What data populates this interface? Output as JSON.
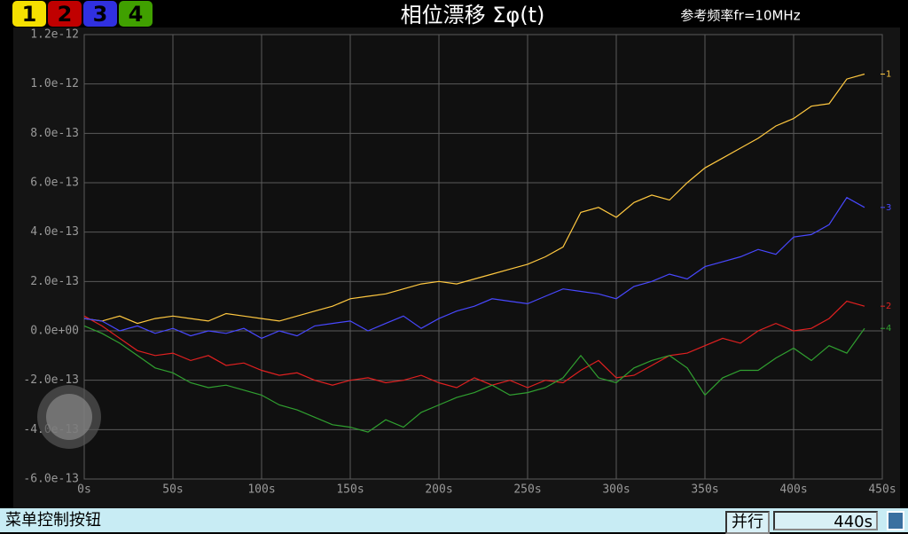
{
  "chart_data": {
    "type": "line",
    "title": "相位漂移 Σφ(t)",
    "subtitle": "参考频率fr=10MHz",
    "x": [
      0,
      10,
      20,
      30,
      40,
      50,
      60,
      70,
      80,
      90,
      100,
      110,
      120,
      130,
      140,
      150,
      160,
      170,
      180,
      190,
      200,
      210,
      220,
      230,
      240,
      250,
      260,
      270,
      280,
      290,
      300,
      310,
      320,
      330,
      340,
      350,
      360,
      370,
      380,
      390,
      400,
      410,
      420,
      430,
      440
    ],
    "series": [
      {
        "name": "1",
        "color": "#ffc840",
        "values": [
          5e-14,
          4e-14,
          6e-14,
          3e-14,
          5e-14,
          6e-14,
          5e-14,
          4e-14,
          7e-14,
          6e-14,
          5e-14,
          4e-14,
          6e-14,
          8e-14,
          1e-13,
          1.3e-13,
          1.4e-13,
          1.5e-13,
          1.7e-13,
          1.9e-13,
          2e-13,
          1.9e-13,
          2.1e-13,
          2.3e-13,
          2.5e-13,
          2.7e-13,
          3e-13,
          3.4e-13,
          4.8e-13,
          5e-13,
          4.6e-13,
          5.2e-13,
          5.5e-13,
          5.3e-13,
          6e-13,
          6.6e-13,
          7e-13,
          7.4e-13,
          7.8e-13,
          8.3e-13,
          8.6e-13,
          9.1e-13,
          9.2e-13,
          1.02e-12,
          1.04e-12
        ]
      },
      {
        "name": "2",
        "color": "#e02020",
        "values": [
          6e-14,
          2e-14,
          -3e-14,
          -8e-14,
          -1e-13,
          -9e-14,
          -1.2e-13,
          -1e-13,
          -1.4e-13,
          -1.3e-13,
          -1.6e-13,
          -1.8e-13,
          -1.7e-13,
          -2e-13,
          -2.2e-13,
          -2e-13,
          -1.9e-13,
          -2.1e-13,
          -2e-13,
          -1.8e-13,
          -2.1e-13,
          -2.3e-13,
          -1.9e-13,
          -2.2e-13,
          -2e-13,
          -2.3e-13,
          -2e-13,
          -2.1e-13,
          -1.6e-13,
          -1.2e-13,
          -1.9e-13,
          -1.8e-13,
          -1.4e-13,
          -1e-13,
          -9e-14,
          -6e-14,
          -3e-14,
          -5e-14,
          0.0,
          3e-14,
          0.0,
          1e-14,
          5e-14,
          1.2e-13,
          1e-13
        ]
      },
      {
        "name": "3",
        "color": "#4848ff",
        "values": [
          5e-14,
          4e-14,
          0.0,
          2e-14,
          -1e-14,
          1e-14,
          -2e-14,
          0.0,
          -1e-14,
          1e-14,
          -3e-14,
          0.0,
          -2e-14,
          2e-14,
          3e-14,
          4e-14,
          0.0,
          3e-14,
          6e-14,
          1e-14,
          5e-14,
          8e-14,
          1e-13,
          1.3e-13,
          1.2e-13,
          1.1e-13,
          1.4e-13,
          1.7e-13,
          1.6e-13,
          1.5e-13,
          1.3e-13,
          1.8e-13,
          2e-13,
          2.3e-13,
          2.1e-13,
          2.6e-13,
          2.8e-13,
          3e-13,
          3.3e-13,
          3.1e-13,
          3.8e-13,
          3.9e-13,
          4.3e-13,
          5.4e-13,
          5e-13
        ]
      },
      {
        "name": "4",
        "color": "#30a030",
        "values": [
          2e-14,
          -1e-14,
          -5e-14,
          -1e-13,
          -1.5e-13,
          -1.7e-13,
          -2.1e-13,
          -2.3e-13,
          -2.2e-13,
          -2.4e-13,
          -2.6e-13,
          -3e-13,
          -3.2e-13,
          -3.5e-13,
          -3.8e-13,
          -3.9e-13,
          -4.1e-13,
          -3.6e-13,
          -3.9e-13,
          -3.3e-13,
          -3e-13,
          -2.7e-13,
          -2.5e-13,
          -2.2e-13,
          -2.6e-13,
          -2.5e-13,
          -2.3e-13,
          -1.9e-13,
          -1e-13,
          -1.9e-13,
          -2.1e-13,
          -1.5e-13,
          -1.2e-13,
          -1e-13,
          -1.5e-13,
          -2.6e-13,
          -1.9e-13,
          -1.6e-13,
          -1.6e-13,
          -1.1e-13,
          -7e-14,
          -1.2e-13,
          -6e-14,
          -9e-14,
          1e-14
        ]
      }
    ],
    "xlim": [
      0,
      450
    ],
    "xticks": [
      {
        "value": 0,
        "label": "0s"
      },
      {
        "value": 50,
        "label": "50s"
      },
      {
        "value": 100,
        "label": "100s"
      },
      {
        "value": 150,
        "label": "150s"
      },
      {
        "value": 200,
        "label": "200s"
      },
      {
        "value": 250,
        "label": "250s"
      },
      {
        "value": 300,
        "label": "300s"
      },
      {
        "value": 350,
        "label": "350s"
      },
      {
        "value": 400,
        "label": "400s"
      },
      {
        "value": 450,
        "label": "450s"
      }
    ],
    "ylim": [
      -6e-13,
      1.2e-12
    ],
    "yticks": [
      {
        "value": -6e-13,
        "label": "-6.0e-13"
      },
      {
        "value": -4e-13,
        "label": "-4.0e-13"
      },
      {
        "value": -2e-13,
        "label": "-2.0e-13"
      },
      {
        "value": 0,
        "label": "0.0e+00"
      },
      {
        "value": 2e-13,
        "label": "2.0e-13"
      },
      {
        "value": 4e-13,
        "label": "4.0e-13"
      },
      {
        "value": 6e-13,
        "label": "6.0e-13"
      },
      {
        "value": 8e-13,
        "label": "8.0e-13"
      },
      {
        "value": 1e-12,
        "label": "1.0e-12"
      },
      {
        "value": 1.2e-12,
        "label": "1.2e-12"
      }
    ],
    "grid": true
  },
  "status_bar": {
    "menu": "菜单控制按钮",
    "mode": "并行",
    "time": "440s"
  }
}
